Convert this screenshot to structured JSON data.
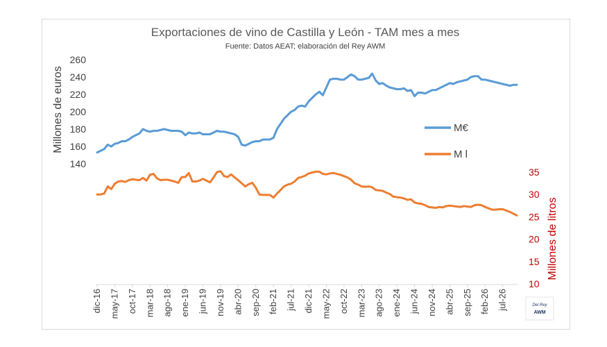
{
  "chart_data": {
    "type": "line",
    "title": "Exportaciones de vino de Castilla y León - TAM mes a mes",
    "subtitle": "Fuente: Datos AEAT; elaboración del Rey AWM",
    "ylabel_left": "Millones de euros",
    "ylabel_right": "Millones de litros",
    "y_left_ticks": [
      "260",
      "240",
      "220",
      "200",
      "180",
      "160",
      "140"
    ],
    "y_right_ticks": [
      "35",
      "30",
      "25",
      "20",
      "15",
      "10"
    ],
    "ylim_left": [
      140,
      260
    ],
    "ylim_right": [
      10,
      35
    ],
    "x_tick_labels": [
      "dic-16",
      "may-17",
      "oct-17",
      "mar-18",
      "ago-18",
      "ene-19",
      "jun-19",
      "nov-19",
      "abr-20",
      "sep-20",
      "feb-21",
      "jul-21",
      "dic-21",
      "may-22",
      "oct-22",
      "mar-23",
      "ago-23",
      "ene-24",
      "jun-24",
      "nov-24",
      "abr-25",
      "sep-25",
      "feb-26",
      "jul-26"
    ],
    "legend_position": "right",
    "grid": false,
    "series": [
      {
        "name": "M€",
        "axis": "left",
        "color": "#5b9bd5",
        "values": [
          153,
          155,
          157,
          162,
          160,
          163,
          164,
          166,
          166,
          168,
          171,
          173,
          175,
          180,
          178,
          177,
          178,
          178,
          179,
          180,
          179,
          178,
          178,
          178,
          177,
          173,
          176,
          175,
          175,
          176,
          174,
          174,
          174,
          176,
          178,
          177,
          177,
          176,
          175,
          174,
          171,
          162,
          161,
          163,
          165,
          166,
          166,
          168,
          168,
          168,
          170,
          180,
          186,
          192,
          196,
          200,
          202,
          206,
          207,
          206,
          212,
          216,
          220,
          223,
          219,
          228,
          237,
          238,
          238,
          237,
          237,
          240,
          243,
          241,
          237,
          237,
          238,
          239,
          244,
          236,
          232,
          233,
          230,
          228,
          227,
          226,
          226,
          227,
          224,
          225,
          218,
          222,
          222,
          221,
          223,
          225,
          225,
          227,
          229,
          231,
          233,
          232,
          234,
          235,
          236,
          237,
          240,
          241,
          241,
          237,
          237,
          236,
          235,
          234,
          233,
          232,
          231,
          230,
          231,
          231
        ]
      },
      {
        "name": "M l",
        "axis": "right",
        "color": "#ed7d31",
        "values": [
          30,
          30,
          30.2,
          31.8,
          31.2,
          32.4,
          32.9,
          33,
          32.8,
          33.2,
          33.4,
          33.3,
          33.2,
          33.7,
          33.1,
          34.4,
          34.6,
          33.6,
          33.2,
          33.3,
          33.3,
          33.1,
          32.9,
          32.6,
          33.9,
          33.9,
          34.8,
          32.9,
          32.9,
          33.1,
          33.5,
          33.1,
          32.7,
          33.8,
          35,
          35.2,
          34.1,
          33.9,
          34.5,
          33.8,
          33.2,
          32.5,
          31.8,
          32.3,
          32.6,
          31.5,
          30,
          29.9,
          29.9,
          29.9,
          29.3,
          30.2,
          31,
          31.8,
          32.2,
          32.4,
          32.9,
          33.7,
          33.9,
          34.2,
          34.7,
          34.9,
          35.1,
          35.1,
          34.6,
          34.5,
          34.7,
          34.8,
          34.6,
          34.4,
          34.1,
          33.8,
          33.3,
          32.5,
          32.2,
          31.8,
          31.7,
          31.8,
          31.6,
          31,
          30.9,
          30.8,
          30.4,
          30.1,
          29.5,
          29.4,
          29.3,
          29.1,
          28.8,
          28.9,
          28.2,
          28,
          27.9,
          27.6,
          27.2,
          27.1,
          27,
          27.2,
          27.1,
          27.4,
          27.5,
          27.4,
          27.3,
          27.2,
          27.4,
          27.3,
          27.2,
          27.6,
          27.7,
          27.6,
          27.2,
          26.9,
          26.6,
          26.6,
          26.7,
          26.7,
          26.4,
          26.1,
          25.7,
          25.3
        ]
      }
    ]
  },
  "logo": {
    "line1": "Del Rey",
    "line2": "AWM"
  }
}
